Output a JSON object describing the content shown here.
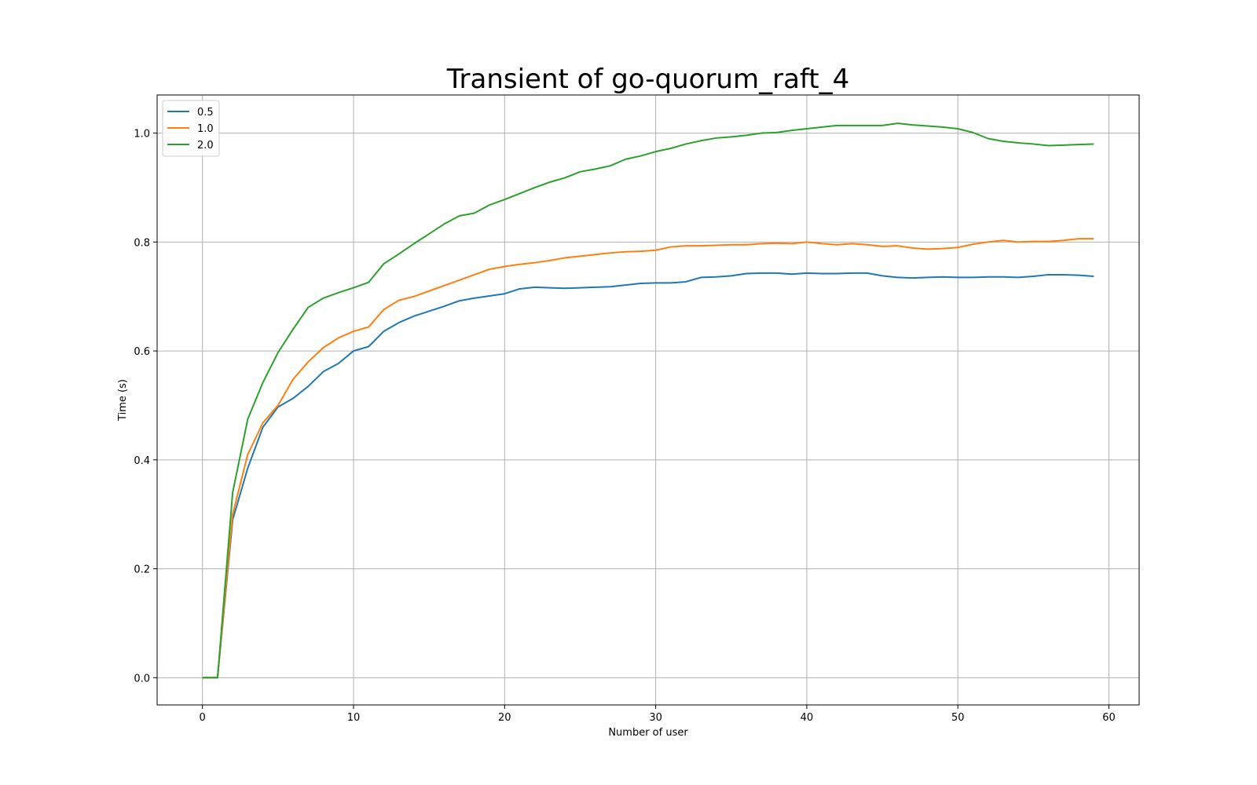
{
  "chart_data": {
    "type": "line",
    "title": "Transient of go-quorum_raft_4",
    "xlabel": "Number of user",
    "ylabel": "Time (s)",
    "xlim": [
      -3,
      62
    ],
    "ylim": [
      -0.05,
      1.07
    ],
    "xticks": [
      0,
      10,
      20,
      30,
      40,
      50,
      60
    ],
    "xtick_labels": [
      "0",
      "10",
      "20",
      "30",
      "40",
      "50",
      "60"
    ],
    "yticks": [
      0.0,
      0.2,
      0.4,
      0.6,
      0.8,
      1.0
    ],
    "ytick_labels": [
      "0.0",
      "0.2",
      "0.4",
      "0.6",
      "0.8",
      "1.0"
    ],
    "grid": true,
    "legend_position": "upper-left",
    "x": [
      0,
      1,
      2,
      3,
      4,
      5,
      6,
      7,
      8,
      9,
      10,
      11,
      12,
      13,
      14,
      15,
      16,
      17,
      18,
      19,
      20,
      21,
      22,
      23,
      24,
      25,
      26,
      27,
      28,
      29,
      30,
      31,
      32,
      33,
      34,
      35,
      36,
      37,
      38,
      39,
      40,
      41,
      42,
      43,
      44,
      45,
      46,
      47,
      48,
      49,
      50,
      51,
      52,
      53,
      54,
      55,
      56,
      57,
      58,
      59
    ],
    "series": [
      {
        "name": "0.5",
        "color": "#1f77b4",
        "values": [
          0.0,
          0.0,
          0.29,
          0.385,
          0.46,
          0.497,
          0.513,
          0.535,
          0.562,
          0.577,
          0.6,
          0.608,
          0.636,
          0.652,
          0.664,
          0.673,
          0.682,
          0.692,
          0.697,
          0.701,
          0.705,
          0.714,
          0.717,
          0.716,
          0.715,
          0.716,
          0.717,
          0.718,
          0.721,
          0.724,
          0.725,
          0.725,
          0.727,
          0.735,
          0.736,
          0.738,
          0.742,
          0.743,
          0.743,
          0.741,
          0.743,
          0.742,
          0.742,
          0.743,
          0.743,
          0.738,
          0.735,
          0.734,
          0.735,
          0.736,
          0.735,
          0.735,
          0.736,
          0.736,
          0.735,
          0.737,
          0.74,
          0.74,
          0.739,
          0.737
        ]
      },
      {
        "name": "1.0",
        "color": "#ff7f0e",
        "values": [
          0.0,
          0.0,
          0.3,
          0.41,
          0.468,
          0.5,
          0.548,
          0.58,
          0.606,
          0.624,
          0.636,
          0.644,
          0.676,
          0.693,
          0.7,
          0.71,
          0.72,
          0.73,
          0.74,
          0.75,
          0.755,
          0.759,
          0.762,
          0.766,
          0.771,
          0.774,
          0.777,
          0.78,
          0.782,
          0.783,
          0.785,
          0.791,
          0.793,
          0.793,
          0.794,
          0.795,
          0.795,
          0.797,
          0.798,
          0.797,
          0.8,
          0.797,
          0.795,
          0.797,
          0.795,
          0.792,
          0.793,
          0.789,
          0.787,
          0.788,
          0.79,
          0.796,
          0.8,
          0.803,
          0.8,
          0.801,
          0.801,
          0.803,
          0.806,
          0.806
        ]
      },
      {
        "name": "2.0",
        "color": "#2ca02c",
        "values": [
          0.0,
          0.0,
          0.34,
          0.475,
          0.542,
          0.597,
          0.64,
          0.68,
          0.697,
          0.707,
          0.716,
          0.726,
          0.76,
          0.778,
          0.797,
          0.815,
          0.833,
          0.848,
          0.853,
          0.868,
          0.878,
          0.889,
          0.9,
          0.91,
          0.918,
          0.929,
          0.934,
          0.94,
          0.952,
          0.958,
          0.966,
          0.972,
          0.98,
          0.986,
          0.991,
          0.993,
          0.996,
          1.0,
          1.001,
          1.005,
          1.008,
          1.011,
          1.014,
          1.014,
          1.014,
          1.014,
          1.018,
          1.015,
          1.013,
          1.011,
          1.008,
          1.001,
          0.99,
          0.985,
          0.982,
          0.98,
          0.977,
          0.978,
          0.979,
          0.98
        ]
      }
    ]
  }
}
